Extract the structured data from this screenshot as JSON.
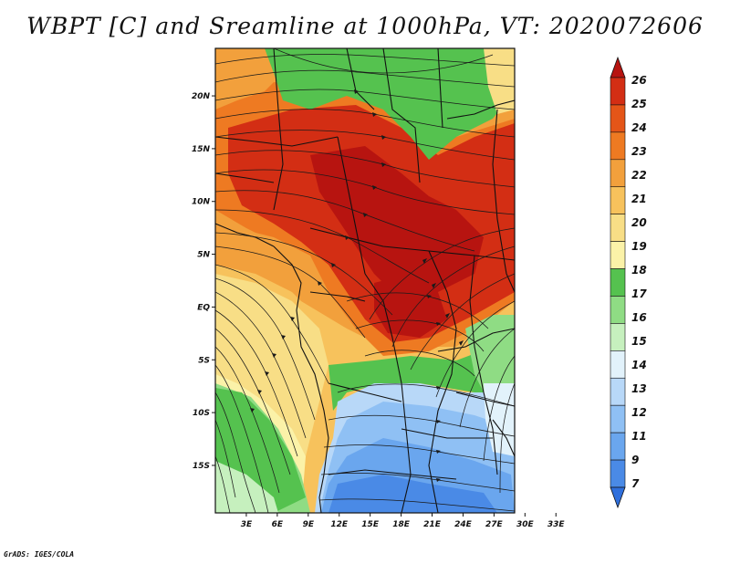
{
  "title": "WBPT [C] and Sreamline at 1000hPa, VT: 2020072606",
  "credit": "GrADS: IGES/COLA",
  "map": {
    "variable": "WBPT",
    "unit": "C",
    "level": "1000hPa",
    "valid_time": "2020072606",
    "lat_range": [
      -19.5,
      24.5
    ],
    "lon_range": [
      0,
      29
    ],
    "lat_ticks": [
      {
        "value": 20,
        "label": "20N"
      },
      {
        "value": 15,
        "label": "15N"
      },
      {
        "value": 10,
        "label": "10N"
      },
      {
        "value": 5,
        "label": "5N"
      },
      {
        "value": 0,
        "label": "EQ"
      },
      {
        "value": -5,
        "label": "5S"
      },
      {
        "value": -10,
        "label": "10S"
      },
      {
        "value": -15,
        "label": "15S"
      }
    ],
    "lon_ticks": [
      {
        "value": 3,
        "label": "3E"
      },
      {
        "value": 6,
        "label": "6E"
      },
      {
        "value": 9,
        "label": "9E"
      },
      {
        "value": 12,
        "label": "12E"
      },
      {
        "value": 15,
        "label": "15E"
      },
      {
        "value": 18,
        "label": "18E"
      },
      {
        "value": 21,
        "label": "21E"
      },
      {
        "value": 24,
        "label": "24E"
      },
      {
        "value": 27,
        "label": "27E"
      },
      {
        "value": 30,
        "label": "30E"
      },
      {
        "value": 33,
        "label": "33E"
      }
    ]
  },
  "colorbar": {
    "levels": [
      "7",
      "9",
      "11",
      "12",
      "13",
      "14",
      "15",
      "16",
      "17",
      "18",
      "19",
      "20",
      "21",
      "22",
      "23",
      "24",
      "25",
      "26"
    ],
    "colors": [
      "#2f6fdc",
      "#4a8ae6",
      "#6aa6ee",
      "#8fc0f4",
      "#b8d8f8",
      "#e2f2fb",
      "#c6f0be",
      "#8fdc84",
      "#55c24f",
      "#fbf2a8",
      "#f8de86",
      "#f7c25c",
      "#f2a03c",
      "#ee7a22",
      "#e45518",
      "#d32e14",
      "#b71410"
    ]
  }
}
